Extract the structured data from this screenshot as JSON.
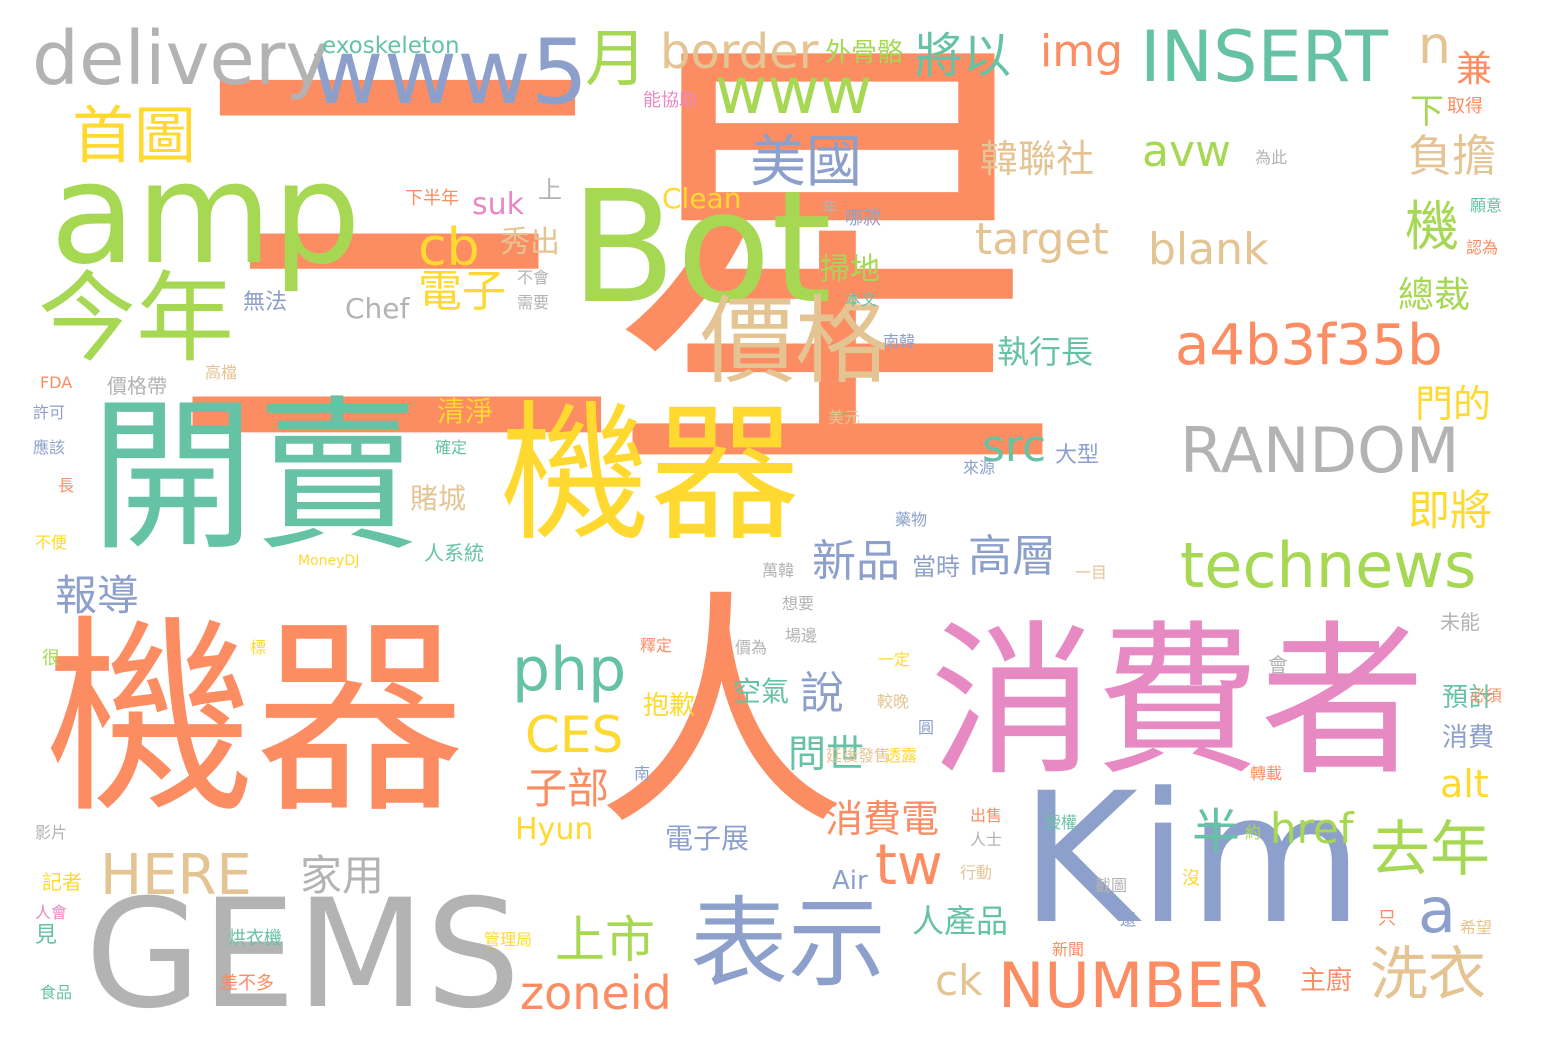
{
  "palette": {
    "orange": "#fc8d62",
    "green": "#a6d854",
    "yellow": "#ffd92f",
    "teal": "#66c2a5",
    "blue": "#8da0cb",
    "pink": "#e78ac3",
    "tan": "#e5c494",
    "gray": "#b3b3b3"
  },
  "words": [
    {
      "text": "三星",
      "color": "orange"
    },
    {
      "text": "機器",
      "color": "yellow"
    },
    {
      "text": "機器",
      "color": "orange"
    },
    {
      "text": "人",
      "color": "orange"
    },
    {
      "text": "消費者",
      "color": "pink"
    },
    {
      "text": "Kim",
      "color": "blue"
    },
    {
      "text": "開賣",
      "color": "teal"
    },
    {
      "text": "Bot",
      "color": "green"
    },
    {
      "text": "amp",
      "color": "green"
    },
    {
      "text": "GEMS",
      "color": "gray"
    },
    {
      "text": "表示",
      "color": "blue"
    },
    {
      "text": "今年",
      "color": "green"
    },
    {
      "text": "價格",
      "color": "tan"
    },
    {
      "text": "www5",
      "color": "blue"
    },
    {
      "text": "delivery",
      "color": "gray"
    },
    {
      "text": "INSERT",
      "color": "teal"
    },
    {
      "text": "a4b3f35b",
      "color": "orange"
    },
    {
      "text": "RANDOM",
      "color": "gray"
    },
    {
      "text": "technews",
      "color": "green"
    },
    {
      "text": "www",
      "color": "green"
    },
    {
      "text": "NUMBER",
      "color": "orange"
    },
    {
      "text": "首圖",
      "color": "yellow"
    },
    {
      "text": "月",
      "color": "green"
    },
    {
      "text": "border",
      "color": "tan"
    },
    {
      "text": "將以",
      "color": "teal"
    },
    {
      "text": "img",
      "color": "orange"
    },
    {
      "text": "n",
      "color": "tan"
    },
    {
      "text": "兼",
      "color": "orange"
    },
    {
      "text": "美國",
      "color": "blue"
    },
    {
      "text": "cb",
      "color": "yellow"
    },
    {
      "text": "電子",
      "color": "yellow"
    },
    {
      "text": "php",
      "color": "teal"
    },
    {
      "text": "CES",
      "color": "yellow"
    },
    {
      "text": "HERE",
      "color": "tan"
    },
    {
      "text": "上市",
      "color": "green"
    },
    {
      "text": "tw",
      "color": "orange"
    },
    {
      "text": "去年",
      "color": "green"
    },
    {
      "text": "洗衣",
      "color": "tan"
    },
    {
      "text": "a",
      "color": "blue"
    },
    {
      "text": "zoneid",
      "color": "orange"
    },
    {
      "text": "新品",
      "color": "blue"
    },
    {
      "text": "高層",
      "color": "blue"
    },
    {
      "text": "韓聯社",
      "color": "tan"
    },
    {
      "text": "avw",
      "color": "green"
    },
    {
      "text": "target",
      "color": "tan"
    },
    {
      "text": "blank",
      "color": "tan"
    },
    {
      "text": "src",
      "color": "teal"
    },
    {
      "text": "執行長",
      "color": "teal"
    },
    {
      "text": "即將",
      "color": "yellow"
    },
    {
      "text": "門的",
      "color": "yellow"
    },
    {
      "text": "負擔",
      "color": "tan"
    },
    {
      "text": "機",
      "color": "green"
    },
    {
      "text": "總裁",
      "color": "green"
    },
    {
      "text": "下",
      "color": "green"
    },
    {
      "text": "報導",
      "color": "blue"
    },
    {
      "text": "家用",
      "color": "gray"
    },
    {
      "text": "子部",
      "color": "orange"
    },
    {
      "text": "說",
      "color": "blue"
    },
    {
      "text": "問世",
      "color": "teal"
    },
    {
      "text": "消費電",
      "color": "orange"
    },
    {
      "text": "半",
      "color": "teal"
    },
    {
      "text": "href",
      "color": "green"
    },
    {
      "text": "alt",
      "color": "yellow"
    },
    {
      "text": "人產品",
      "color": "teal"
    },
    {
      "text": "ck",
      "color": "tan"
    },
    {
      "text": "電子展",
      "color": "blue"
    },
    {
      "text": "exoskeleton",
      "color": "teal"
    },
    {
      "text": "外骨骼",
      "color": "green"
    },
    {
      "text": "Clean",
      "color": "yellow"
    },
    {
      "text": "suk",
      "color": "pink"
    },
    {
      "text": "秀出",
      "color": "tan"
    },
    {
      "text": "掃地",
      "color": "green"
    },
    {
      "text": "Chef",
      "color": "gray"
    },
    {
      "text": "清淨",
      "color": "yellow"
    },
    {
      "text": "賭城",
      "color": "tan"
    },
    {
      "text": "人系統",
      "color": "teal"
    },
    {
      "text": "Hyun",
      "color": "yellow"
    },
    {
      "text": "空氣",
      "color": "teal"
    },
    {
      "text": "抱歉",
      "color": "yellow"
    },
    {
      "text": "大型",
      "color": "blue"
    },
    {
      "text": "預計",
      "color": "teal"
    },
    {
      "text": "消費",
      "color": "blue"
    },
    {
      "text": "主廚",
      "color": "orange"
    },
    {
      "text": "當時",
      "color": "blue"
    },
    {
      "text": "無法",
      "color": "blue"
    },
    {
      "text": "價格帶",
      "color": "gray"
    },
    {
      "text": "Air",
      "color": "blue"
    },
    {
      "text": "能協助",
      "color": "pink"
    },
    {
      "text": "買單",
      "color": "orange"
    },
    {
      "text": "取得",
      "color": "orange"
    },
    {
      "text": "上",
      "color": "gray"
    },
    {
      "text": "下半年",
      "color": "orange"
    },
    {
      "text": "不會",
      "color": "gray"
    },
    {
      "text": "需要",
      "color": "gray"
    },
    {
      "text": "哪款",
      "color": "blue"
    },
    {
      "text": "本文",
      "color": "teal"
    },
    {
      "text": "年",
      "color": "gray"
    },
    {
      "text": "願意",
      "color": "teal"
    },
    {
      "text": "認為",
      "color": "orange"
    },
    {
      "text": "為此",
      "color": "gray"
    },
    {
      "text": "南韓",
      "color": "blue"
    },
    {
      "text": "高檔",
      "color": "tan"
    },
    {
      "text": "FDA",
      "color": "orange"
    },
    {
      "text": "許可",
      "color": "blue"
    },
    {
      "text": "應該",
      "color": "blue"
    },
    {
      "text": "確定",
      "color": "teal"
    },
    {
      "text": "美元",
      "color": "tan"
    },
    {
      "text": "來源",
      "color": "blue"
    },
    {
      "text": "長",
      "color": "orange"
    },
    {
      "text": "不便",
      "color": "yellow"
    },
    {
      "text": "MoneyDJ",
      "color": "yellow"
    },
    {
      "text": "藥物",
      "color": "blue"
    },
    {
      "text": "一目",
      "color": "tan"
    },
    {
      "text": "萬韓",
      "color": "gray"
    },
    {
      "text": "想要",
      "color": "gray"
    },
    {
      "text": "場邊",
      "color": "gray"
    },
    {
      "text": "未能",
      "color": "gray"
    },
    {
      "text": "很",
      "color": "green"
    },
    {
      "text": "標",
      "color": "yellow"
    },
    {
      "text": "釋定",
      "color": "orange"
    },
    {
      "text": "價為",
      "color": "gray"
    },
    {
      "text": "一定",
      "color": "yellow"
    },
    {
      "text": "會",
      "color": "gray"
    },
    {
      "text": "較晚",
      "color": "tan"
    },
    {
      "text": "必須",
      "color": "orange"
    },
    {
      "text": "圓",
      "color": "blue"
    },
    {
      "text": "延後發售",
      "color": "tan"
    },
    {
      "text": "透露",
      "color": "yellow"
    },
    {
      "text": "南",
      "color": "blue"
    },
    {
      "text": "轉載",
      "color": "orange"
    },
    {
      "text": "影片",
      "color": "gray"
    },
    {
      "text": "約",
      "color": "green"
    },
    {
      "text": "授權",
      "color": "teal"
    },
    {
      "text": "出售",
      "color": "orange"
    },
    {
      "text": "人士",
      "color": "gray"
    },
    {
      "text": "記者",
      "color": "yellow"
    },
    {
      "text": "行動",
      "color": "tan"
    },
    {
      "text": "沒",
      "color": "yellow"
    },
    {
      "text": "截圖",
      "color": "gray"
    },
    {
      "text": "人會",
      "color": "pink"
    },
    {
      "text": "見",
      "color": "teal"
    },
    {
      "text": "烘衣機",
      "color": "teal"
    },
    {
      "text": "管理局",
      "color": "yellow"
    },
    {
      "text": "還",
      "color": "blue"
    },
    {
      "text": "只",
      "color": "orange"
    },
    {
      "text": "新聞",
      "color": "orange"
    },
    {
      "text": "希望",
      "color": "tan"
    },
    {
      "text": "食品",
      "color": "teal"
    },
    {
      "text": "差不多",
      "color": "orange"
    }
  ]
}
